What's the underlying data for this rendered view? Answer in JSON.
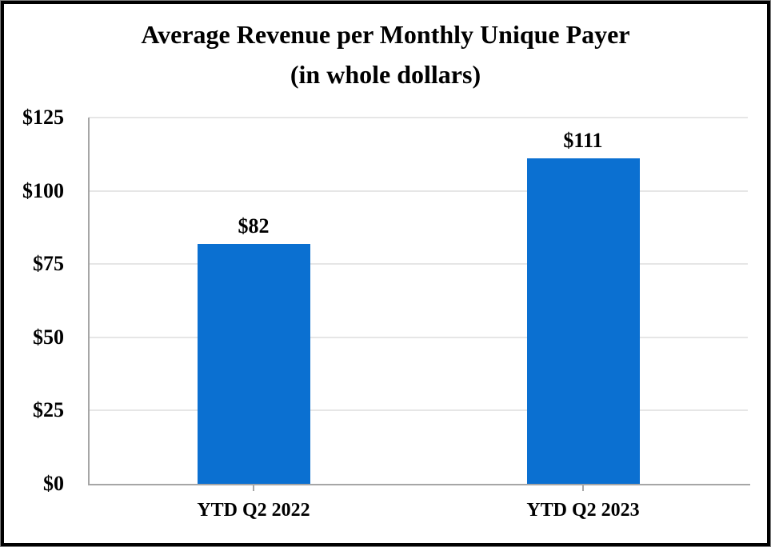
{
  "chart_data": {
    "type": "bar",
    "title": "Average Revenue per Monthly Unique Payer",
    "subtitle": "(in whole dollars)",
    "categories": [
      "YTD Q2 2022",
      "YTD Q2 2023"
    ],
    "values": [
      82,
      111
    ],
    "data_labels": [
      "$82",
      "$111"
    ],
    "y_tick_labels": [
      "$125",
      "$100",
      "$75",
      "$50",
      "$25",
      "$0"
    ],
    "y_tick_values": [
      125,
      100,
      75,
      50,
      25,
      0
    ],
    "ylim": [
      0,
      125
    ],
    "grid": "horizontal",
    "legend": "none",
    "colors": {
      "bar": "#0b70d1",
      "axis": "#a6a6a6",
      "gridline": "#e6e6e6",
      "text": "#000000",
      "frame_border": "#000000"
    }
  }
}
